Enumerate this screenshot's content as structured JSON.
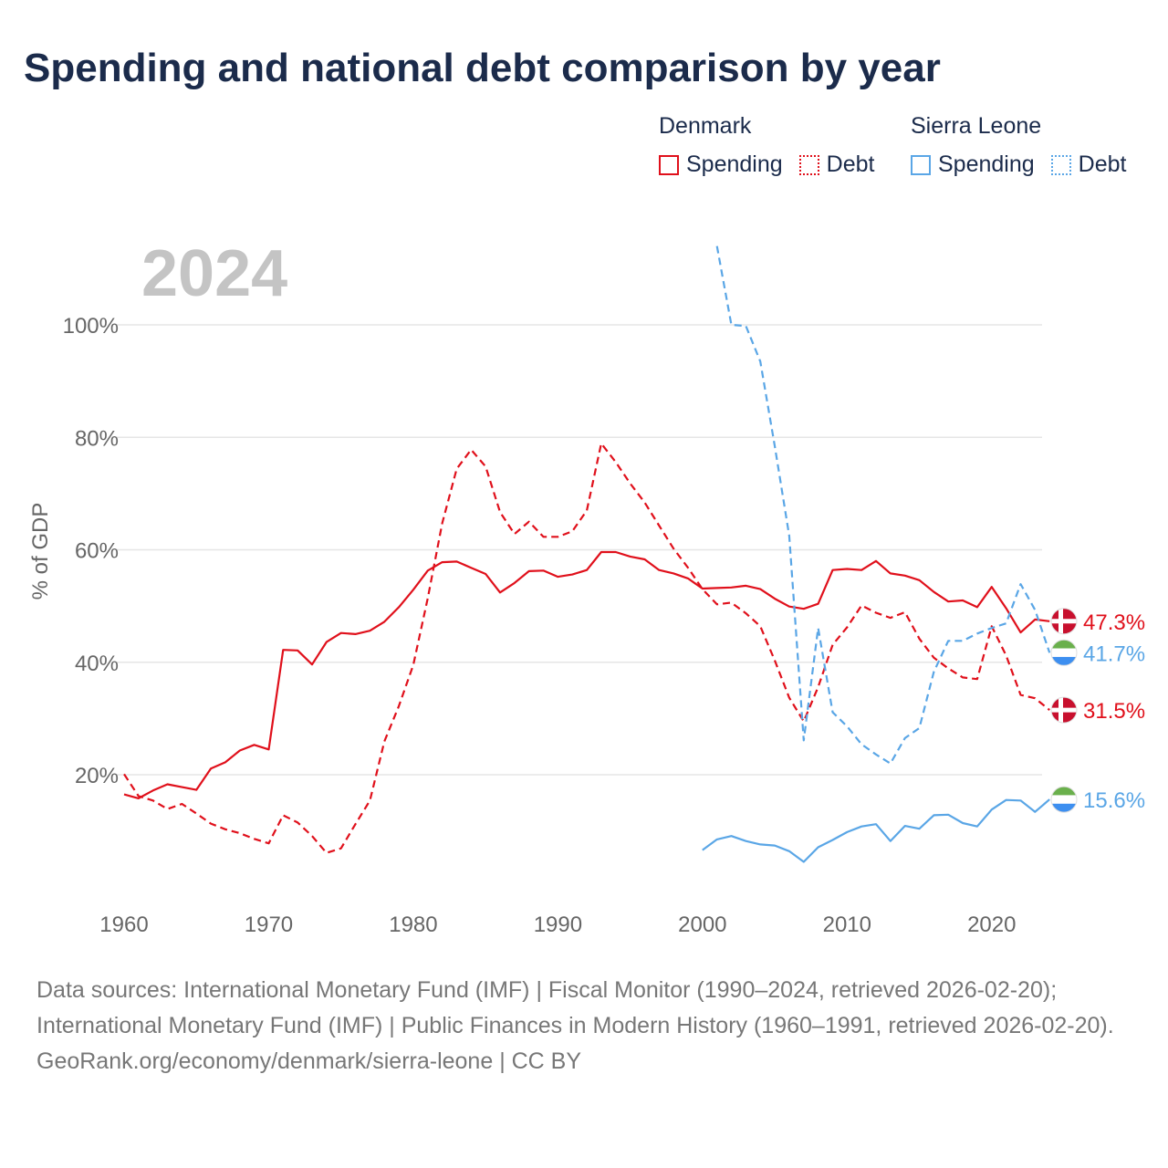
{
  "title": "Spending and national debt comparison by year",
  "year_label": "2024",
  "legend": [
    {
      "country": "Denmark",
      "color": "#e0101b",
      "items": [
        {
          "label": "Spending",
          "style": "solid"
        },
        {
          "label": "Debt",
          "style": "dotted"
        }
      ]
    },
    {
      "country": "Sierra Leone",
      "color": "#5aa6e6",
      "items": [
        {
          "label": "Spending",
          "style": "solid"
        },
        {
          "label": "Debt",
          "style": "dotted"
        }
      ]
    }
  ],
  "footer": {
    "sources": "Data sources: International Monetary Fund (IMF) | Fiscal Monitor (1990–2024, retrieved 2026-02-20); International Monetary Fund (IMF) | Public Finances in Modern History (1960–1991, retrieved 2026-02-20).",
    "credit": "GeoRank.org/economy/denmark/sierra-leone | CC BY"
  },
  "chart_data": {
    "type": "line",
    "ylabel": "% of GDP",
    "xlabel": "",
    "xlim": [
      1960,
      2025
    ],
    "ylim": [
      0,
      115
    ],
    "x_ticks": [
      1960,
      1970,
      1980,
      1990,
      2000,
      2010,
      2020
    ],
    "y_ticks": [
      20,
      40,
      60,
      80,
      100
    ],
    "y_tick_labels": [
      "20%",
      "40%",
      "60%",
      "80%",
      "100%"
    ],
    "series": [
      {
        "name": "Denmark Spending",
        "country": "Denmark",
        "metric": "Spending",
        "color": "#e0101b",
        "dash": "solid",
        "end_label": "47.3%",
        "x": [
          1960,
          1961,
          1962,
          1963,
          1964,
          1965,
          1966,
          1967,
          1968,
          1969,
          1970,
          1971,
          1972,
          1973,
          1974,
          1975,
          1976,
          1977,
          1978,
          1979,
          1980,
          1981,
          1982,
          1983,
          1984,
          1985,
          1986,
          1987,
          1988,
          1989,
          1990,
          1991,
          1992,
          1993,
          1994,
          1995,
          1996,
          1997,
          1998,
          1999,
          2000,
          2001,
          2002,
          2003,
          2004,
          2005,
          2006,
          2007,
          2008,
          2009,
          2010,
          2011,
          2012,
          2013,
          2014,
          2015,
          2016,
          2017,
          2018,
          2019,
          2020,
          2021,
          2022,
          2023,
          2024
        ],
        "values": [
          16.5,
          15.8,
          17.2,
          18.3,
          17.8,
          17.3,
          21.1,
          22.2,
          24.3,
          25.3,
          24.5,
          42.2,
          42.1,
          39.6,
          43.6,
          45.2,
          45.0,
          45.6,
          47.2,
          49.8,
          52.9,
          56.3,
          57.8,
          57.9,
          56.8,
          55.7,
          52.4,
          54.1,
          56.2,
          56.3,
          55.2,
          55.6,
          56.4,
          59.6,
          59.6,
          58.8,
          58.3,
          56.4,
          55.8,
          54.9,
          53.1,
          53.2,
          53.3,
          53.6,
          53.0,
          51.3,
          49.9,
          49.5,
          50.4,
          56.4,
          56.6,
          56.4,
          58.0,
          55.8,
          55.4,
          54.6,
          52.5,
          50.8,
          51.0,
          49.8,
          53.4,
          49.6,
          45.3,
          47.6,
          47.3
        ]
      },
      {
        "name": "Denmark Debt",
        "country": "Denmark",
        "metric": "Debt",
        "color": "#e0101b",
        "dash": "dashed",
        "end_label": "31.5%",
        "x": [
          1960,
          1961,
          1962,
          1963,
          1964,
          1965,
          1966,
          1967,
          1968,
          1969,
          1970,
          1971,
          1972,
          1973,
          1974,
          1975,
          1976,
          1977,
          1978,
          1979,
          1980,
          1981,
          1982,
          1983,
          1984,
          1985,
          1986,
          1987,
          1988,
          1989,
          1990,
          1991,
          1992,
          1993,
          1994,
          1995,
          1996,
          1997,
          1998,
          1999,
          2000,
          2001,
          2002,
          2003,
          2004,
          2005,
          2006,
          2007,
          2008,
          2009,
          2010,
          2011,
          2012,
          2013,
          2014,
          2015,
          2016,
          2017,
          2018,
          2019,
          2020,
          2021,
          2022,
          2023,
          2024
        ],
        "values": [
          20.1,
          16.2,
          15.4,
          13.9,
          14.8,
          13.1,
          11.3,
          10.3,
          9.6,
          8.6,
          7.8,
          12.8,
          11.5,
          9.1,
          6.1,
          6.9,
          11.2,
          15.4,
          25.9,
          32.2,
          39.5,
          51.4,
          64.7,
          74.4,
          77.8,
          74.8,
          66.7,
          62.8,
          65.0,
          62.3,
          62.3,
          63.3,
          67.0,
          78.9,
          75.6,
          71.8,
          68.4,
          64.3,
          60.2,
          56.8,
          53.0,
          50.3,
          50.6,
          48.7,
          46.4,
          40.3,
          33.7,
          29.5,
          35.6,
          43.1,
          46.2,
          50.1,
          48.8,
          47.9,
          48.9,
          44.2,
          40.8,
          38.9,
          37.3,
          37.0,
          46.4,
          41.2,
          34.2,
          33.6,
          31.5
        ]
      },
      {
        "name": "Sierra Leone Spending",
        "country": "Sierra Leone",
        "metric": "Spending",
        "color": "#5aa6e6",
        "dash": "solid",
        "end_label": "15.6%",
        "x": [
          2000,
          2001,
          2002,
          2003,
          2004,
          2005,
          2006,
          2007,
          2008,
          2009,
          2010,
          2011,
          2012,
          2013,
          2014,
          2015,
          2016,
          2017,
          2018,
          2019,
          2020,
          2021,
          2022,
          2023,
          2024
        ],
        "values": [
          6.6,
          8.5,
          9.1,
          8.2,
          7.6,
          7.4,
          6.4,
          4.5,
          7.1,
          8.4,
          9.8,
          10.8,
          11.2,
          8.2,
          10.9,
          10.4,
          12.8,
          12.9,
          11.4,
          10.8,
          13.8,
          15.5,
          15.4,
          13.4,
          15.6
        ]
      },
      {
        "name": "Sierra Leone Debt",
        "country": "Sierra Leone",
        "metric": "Debt",
        "color": "#5aa6e6",
        "dash": "dashed",
        "end_label": "41.7%",
        "x": [
          2001,
          2002,
          2003,
          2004,
          2005,
          2006,
          2007,
          2008,
          2009,
          2010,
          2011,
          2012,
          2013,
          2014,
          2015,
          2016,
          2017,
          2018,
          2019,
          2020,
          2021,
          2022,
          2023,
          2024
        ],
        "values": [
          114.0,
          100.0,
          99.8,
          93.5,
          78.4,
          62.5,
          26.1,
          46.1,
          31.1,
          28.6,
          25.4,
          23.6,
          22.0,
          26.5,
          28.3,
          38.3,
          43.8,
          43.8,
          45.1,
          46.1,
          46.9,
          53.9,
          49.3,
          41.7
        ]
      }
    ]
  }
}
